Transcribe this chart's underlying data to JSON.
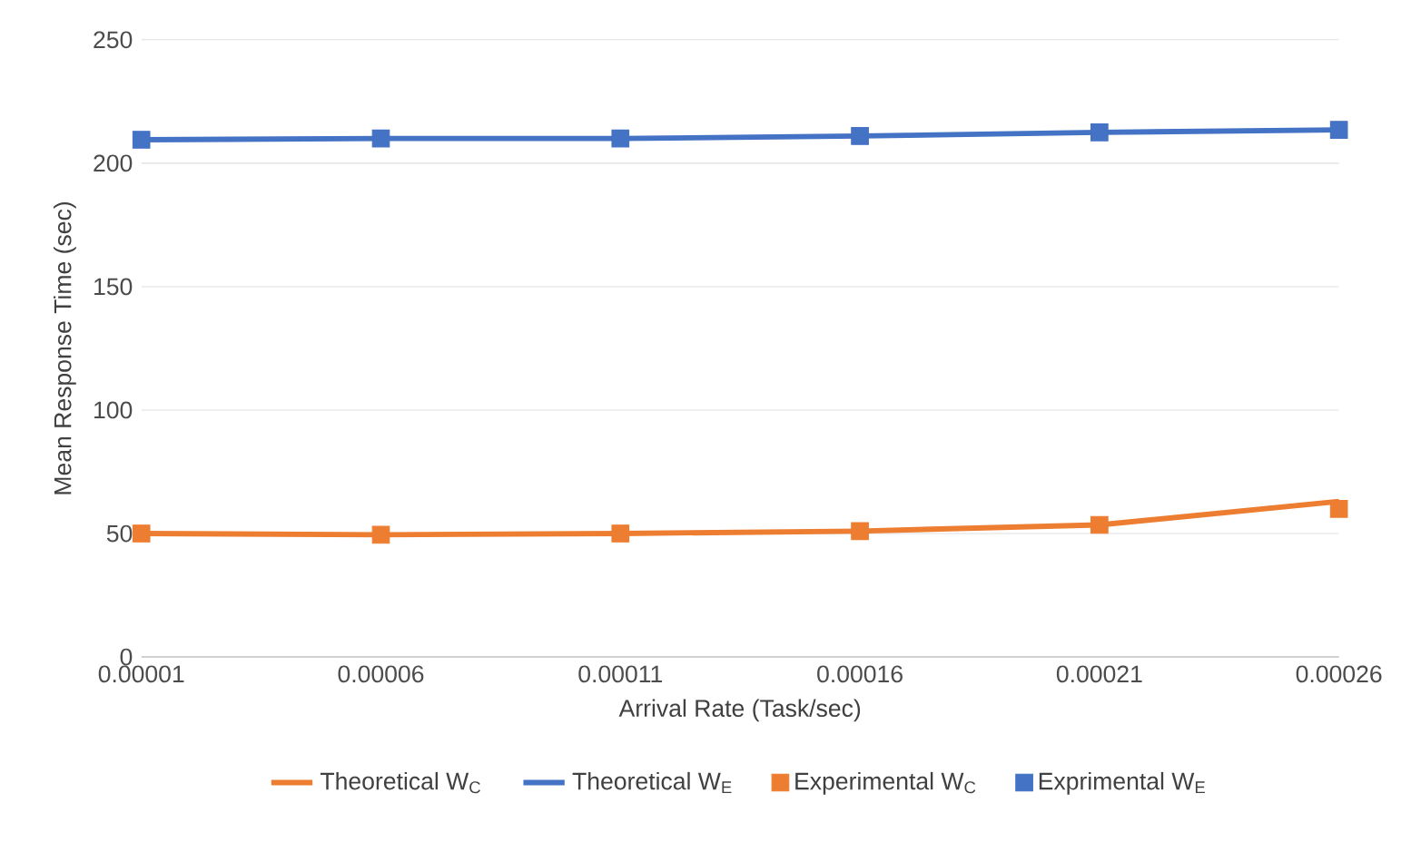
{
  "chart_data": {
    "type": "line",
    "xlabel": "Arrival Rate (Task/sec)",
    "ylabel": "Mean Response Time (sec)",
    "categories": [
      "0.00001",
      "0.00006",
      "0.00011",
      "0.00016",
      "0.00021",
      "0.00026"
    ],
    "ylim": [
      0,
      250
    ],
    "yticks": [
      0,
      50,
      100,
      150,
      200,
      250
    ],
    "grid": "y",
    "legend": "bottom",
    "series": [
      {
        "name": "Theoretical W$_{C}$",
        "color": "#ed7d31",
        "values": [
          50,
          49.5,
          50,
          51,
          53.5,
          63
        ]
      },
      {
        "name": "Theoretical W$_{E}$",
        "color": "#4472c4",
        "values": [
          209.5,
          210,
          210,
          211,
          212.5,
          213.5
        ]
      },
      {
        "name": "Experimental W$_{C}$",
        "type": "scatter",
        "marker": "square",
        "color": "#ed7d31",
        "values": [
          50,
          49.5,
          50,
          51,
          53.5,
          60
        ]
      },
      {
        "name": "Exprimental W$_{E}$",
        "type": "scatter",
        "marker": "square",
        "color": "#4472c4",
        "values": [
          209.5,
          210,
          210,
          211,
          212.5,
          213.5
        ]
      }
    ]
  }
}
